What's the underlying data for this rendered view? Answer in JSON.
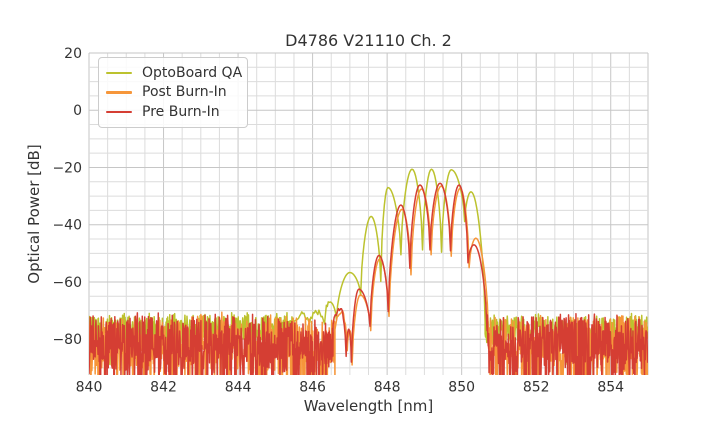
{
  "chart_data": {
    "type": "line",
    "title": "D4786 V21110 Ch. 2",
    "xlabel": "Wavelength [nm]",
    "ylabel": "Optical Power [dB]",
    "xlim": [
      840,
      855
    ],
    "ylim": [
      -92.5,
      20
    ],
    "xticks": [
      840,
      842,
      844,
      846,
      848,
      850,
      852,
      854
    ],
    "yticks": [
      20,
      0,
      -20,
      -40,
      -60,
      -80
    ],
    "minor_x_step": 0.5,
    "minor_y_step": 5,
    "grid": "both",
    "legend_position": "upper left",
    "series": [
      {
        "name": "OptoBoard QA",
        "color": "#bcc22e",
        "peak_points": [
          [
            845.45,
            -74.0
          ],
          [
            845.71,
            -71.4
          ],
          [
            845.92,
            -74.5
          ],
          [
            846.11,
            -70.3
          ],
          [
            846.32,
            -73.5
          ],
          [
            846.47,
            -67.0
          ],
          [
            846.64,
            -73.2
          ],
          [
            847.0,
            -56.7
          ],
          [
            847.29,
            -64.7
          ],
          [
            847.57,
            -37.1
          ],
          [
            847.83,
            -59.8
          ],
          [
            848.02,
            -27.0
          ],
          [
            848.37,
            -50.5
          ],
          [
            848.67,
            -20.6
          ],
          [
            848.95,
            -48.8
          ],
          [
            849.19,
            -20.6
          ],
          [
            849.46,
            -49.6
          ],
          [
            849.72,
            -20.8
          ],
          [
            850.08,
            -38.9
          ],
          [
            850.25,
            -28.5
          ],
          [
            850.63,
            -74.0
          ]
        ],
        "jitter": {
          "until": 846.44,
          "amp": 1.3,
          "seed": 13
        },
        "noise_left": {
          "from": 840.0,
          "to": 845.45,
          "env": [
            [
              840,
              -72.0
            ],
            [
              844.5,
              -71.8
            ],
            [
              845.45,
              -70.5
            ]
          ],
          "amp": 9.5,
          "dip_chance": 0.2,
          "dip_extra": 9,
          "seed": 11
        },
        "noise_right": {
          "from": 850.63,
          "to": 855.0,
          "env": [
            [
              850.63,
              -72.0
            ],
            [
              855,
              -71.8
            ]
          ],
          "amp": 10,
          "dip_chance": 0.2,
          "dip_extra": 9,
          "seed": 12
        }
      },
      {
        "name": "Post Burn-In",
        "color": "#f6963a",
        "peak_points": [
          [
            846.6,
            -76.0
          ],
          [
            846.78,
            -70.5
          ],
          [
            846.93,
            -84.0
          ],
          [
            847.0,
            -77.0
          ],
          [
            847.06,
            -89.0
          ],
          [
            847.28,
            -64.5
          ],
          [
            847.56,
            -77.0
          ],
          [
            847.8,
            -52.0
          ],
          [
            848.05,
            -72.0
          ],
          [
            848.4,
            -34.6
          ],
          [
            848.64,
            -57.5
          ],
          [
            848.92,
            -27.5
          ],
          [
            849.18,
            -50.5
          ],
          [
            849.45,
            -26.5
          ],
          [
            849.72,
            -51.0
          ],
          [
            849.96,
            -27.3
          ],
          [
            850.2,
            -55.0
          ],
          [
            850.38,
            -44.7
          ],
          [
            850.72,
            -78.0
          ]
        ],
        "jitter": {
          "until": 846.9,
          "amp": 0.8,
          "seed": 23
        },
        "noise_left": {
          "from": 840.0,
          "to": 846.6,
          "env": [
            [
              840,
              -72.3
            ],
            [
              845.2,
              -71.8
            ],
            [
              846.6,
              -73.5
            ]
          ],
          "amp": 16,
          "dip_chance": 0.34,
          "dip_extra": 19,
          "seed": 21
        },
        "noise_right": {
          "from": 850.72,
          "to": 855.0,
          "env": [
            [
              850.72,
              -72.3
            ],
            [
              855,
              -72.3
            ]
          ],
          "amp": 16,
          "dip_chance": 0.34,
          "dip_extra": 19,
          "seed": 22
        }
      },
      {
        "name": "Pre Burn-In",
        "color": "#d53e33",
        "peak_points": [
          [
            846.55,
            -75.0
          ],
          [
            846.75,
            -69.5
          ],
          [
            846.9,
            -86.0
          ],
          [
            846.97,
            -76.5
          ],
          [
            847.04,
            -88.0
          ],
          [
            847.24,
            -62.5
          ],
          [
            847.54,
            -75.5
          ],
          [
            847.78,
            -50.7
          ],
          [
            848.03,
            -70.3
          ],
          [
            848.37,
            -33.1
          ],
          [
            848.61,
            -55.2
          ],
          [
            848.88,
            -26.1
          ],
          [
            849.15,
            -48.8
          ],
          [
            849.42,
            -25.5
          ],
          [
            849.7,
            -49.1
          ],
          [
            849.93,
            -26.1
          ],
          [
            850.17,
            -53.3
          ],
          [
            850.33,
            -47.0
          ],
          [
            850.68,
            -77.0
          ]
        ],
        "jitter": {
          "until": 846.85,
          "amp": 0.8,
          "seed": 33
        },
        "noise_left": {
          "from": 840.0,
          "to": 846.55,
          "env": [
            [
              840,
              -71.8
            ],
            [
              845.2,
              -71.3
            ],
            [
              846.55,
              -73.0
            ]
          ],
          "amp": 17,
          "dip_chance": 0.36,
          "dip_extra": 20,
          "seed": 31
        },
        "noise_right": {
          "from": 850.68,
          "to": 855.0,
          "env": [
            [
              850.68,
              -71.8
            ],
            [
              855,
              -71.8
            ]
          ],
          "amp": 17,
          "dip_chance": 0.36,
          "dip_extra": 20,
          "seed": 32
        }
      }
    ]
  },
  "style": {
    "grid_major_color": "#c6c6c6",
    "grid_minor_color": "#dcdcdc",
    "text_color": "#333333",
    "background": "#ffffff"
  }
}
